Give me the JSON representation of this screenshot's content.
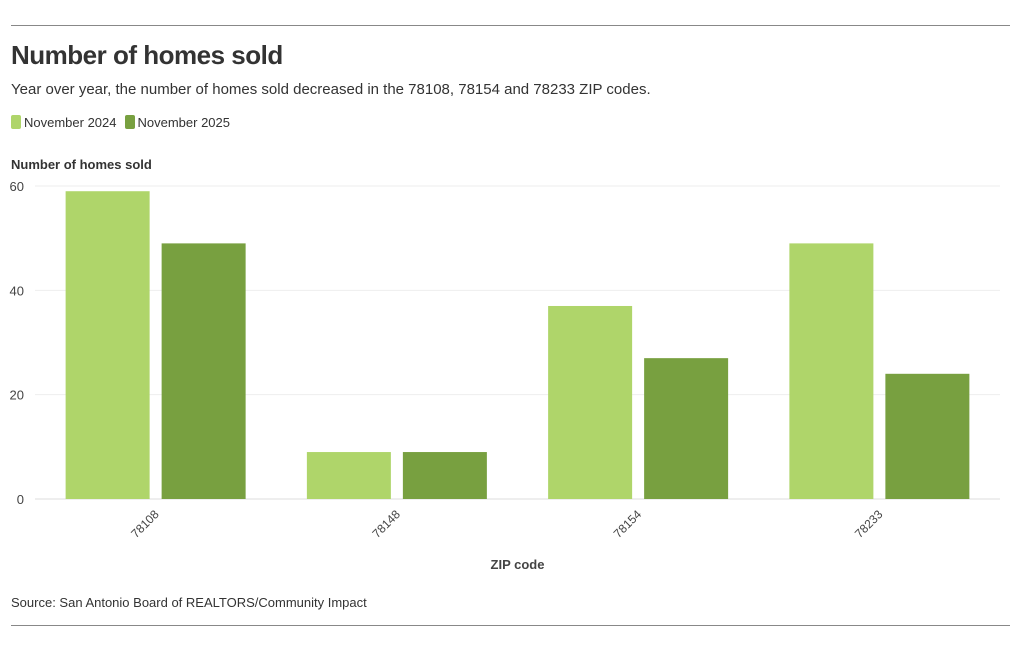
{
  "chart_data": {
    "type": "bar",
    "title": "Number of homes sold",
    "subtitle": "Year over year, the number of homes sold decreased in the 78108, 78154 and 78233 ZIP codes.",
    "xlabel": "ZIP code",
    "ylabel": "Number of homes sold",
    "ylim": [
      0,
      60
    ],
    "yticks": [
      0,
      20,
      40,
      60
    ],
    "categories": [
      "78108",
      "78148",
      "78154",
      "78233"
    ],
    "series": [
      {
        "name": "November 2024",
        "color": "#afd56a",
        "values": [
          59,
          9,
          37,
          49
        ]
      },
      {
        "name": "November 2025",
        "color": "#78a040",
        "values": [
          49,
          9,
          27,
          24
        ]
      }
    ],
    "legend_position": "top-left",
    "grid": true,
    "source": "Source: San Antonio Board of REALTORS/Community Impact"
  }
}
